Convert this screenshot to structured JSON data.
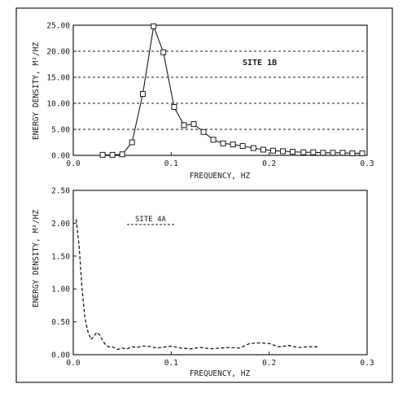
{
  "chart_data": [
    {
      "type": "line",
      "title": "",
      "annotation": "SITE 1B",
      "xlabel": "FREQUENCY, HZ",
      "ylabel": "ENERGY DENSITY, M²/HZ",
      "xlim": [
        0,
        0.3
      ],
      "ylim": [
        0,
        25
      ],
      "x_ticks": [
        "0.0",
        "0.1",
        "0.2",
        "0.3"
      ],
      "y_ticks": [
        "0.00",
        "5.00",
        "10.00",
        "15.00",
        "20.00",
        "25.00"
      ],
      "grid": "horizontal dashed",
      "marker": "square",
      "line_style": "solid",
      "color": "#1a1a1a",
      "series": [
        {
          "x": [
            0.03,
            0.04,
            0.05,
            0.06,
            0.071,
            0.082,
            0.092,
            0.103,
            0.113,
            0.123,
            0.133,
            0.143,
            0.153,
            0.163,
            0.173,
            0.184,
            0.194,
            0.204,
            0.214,
            0.224,
            0.235,
            0.245,
            0.255,
            0.265,
            0.275,
            0.285,
            0.295
          ],
          "y": [
            0.1,
            0.1,
            0.2,
            2.5,
            11.8,
            24.8,
            19.8,
            9.3,
            5.8,
            6.0,
            4.5,
            3.0,
            2.3,
            2.1,
            1.8,
            1.4,
            1.1,
            0.9,
            0.8,
            0.7,
            0.6,
            0.6,
            0.5,
            0.5,
            0.5,
            0.4,
            0.4
          ]
        }
      ]
    },
    {
      "type": "line",
      "title": "",
      "annotation": "SITE 4A",
      "xlabel": "FREQUENCY, HZ",
      "ylabel": "ENERGY DENSITY, M²/HZ",
      "xlim": [
        0,
        0.3
      ],
      "ylim": [
        0,
        2.5
      ],
      "x_ticks": [
        "0.0",
        "0.1",
        "0.2",
        "0.3"
      ],
      "y_ticks": [
        "0.00",
        "0.50",
        "1.00",
        "1.50",
        "2.00",
        "2.50"
      ],
      "grid": "none",
      "line_style": "dashed",
      "color": "#1a1a1a",
      "series": [
        {
          "x": [
            0.003,
            0.006,
            0.009,
            0.012,
            0.015,
            0.018,
            0.021,
            0.024,
            0.027,
            0.03,
            0.033,
            0.036,
            0.04,
            0.045,
            0.05,
            0.055,
            0.06,
            0.065,
            0.07,
            0.075,
            0.08,
            0.085,
            0.09,
            0.095,
            0.1,
            0.11,
            0.12,
            0.13,
            0.14,
            0.15,
            0.16,
            0.17,
            0.18,
            0.19,
            0.2,
            0.21,
            0.22,
            0.23,
            0.24,
            0.25
          ],
          "y": [
            2.06,
            1.65,
            1.0,
            0.55,
            0.35,
            0.23,
            0.28,
            0.34,
            0.3,
            0.22,
            0.15,
            0.12,
            0.12,
            0.08,
            0.1,
            0.09,
            0.12,
            0.11,
            0.13,
            0.13,
            0.12,
            0.1,
            0.11,
            0.12,
            0.13,
            0.1,
            0.09,
            0.11,
            0.09,
            0.1,
            0.11,
            0.1,
            0.17,
            0.18,
            0.17,
            0.12,
            0.14,
            0.11,
            0.12,
            0.12
          ]
        }
      ]
    }
  ]
}
